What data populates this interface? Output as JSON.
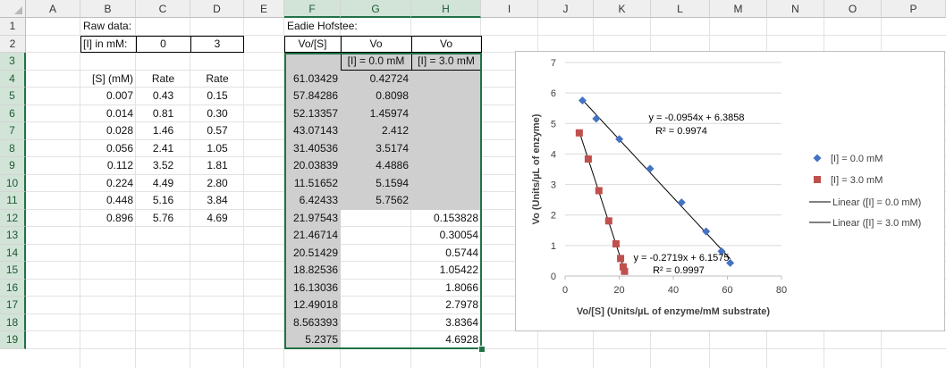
{
  "columns": [
    "A",
    "B",
    "C",
    "D",
    "E",
    "F",
    "G",
    "H",
    "I",
    "J",
    "K",
    "L",
    "M",
    "N",
    "O",
    "P"
  ],
  "rows": [
    "1",
    "2",
    "3",
    "4",
    "5",
    "6",
    "7",
    "8",
    "9",
    "10",
    "11",
    "12",
    "13",
    "14",
    "15",
    "16",
    "17",
    "18",
    "19"
  ],
  "raw": {
    "title": "Raw data:",
    "i_label": "[I] in mM:",
    "i_values": [
      "0",
      "3"
    ],
    "headers": [
      "[S] (mM)",
      "Rate",
      "Rate"
    ],
    "s": [
      "0.007",
      "0.014",
      "0.028",
      "0.056",
      "0.112",
      "0.224",
      "0.448",
      "0.896"
    ],
    "rate0": [
      "0.43",
      "0.81",
      "1.46",
      "2.41",
      "3.52",
      "4.49",
      "5.16",
      "5.76"
    ],
    "rate3": [
      "0.15",
      "0.30",
      "0.57",
      "1.05",
      "1.81",
      "2.80",
      "3.84",
      "4.69"
    ]
  },
  "eh": {
    "title": "Eadie Hofstee:",
    "headers": [
      "Vo/[S]",
      "Vo",
      "Vo"
    ],
    "subheaders": [
      "[I] = 0.0 mM",
      "[I] = 3.0 mM"
    ],
    "vos": [
      "61.03429",
      "57.84286",
      "52.13357",
      "43.07143",
      "31.40536",
      "20.03839",
      "11.51652",
      "6.42433",
      "21.97543",
      "21.46714",
      "20.51429",
      "18.82536",
      "16.13036",
      "12.49018",
      "8.563393",
      "5.2375"
    ],
    "vo0": [
      "0.42724",
      "0.8098",
      "1.45974",
      "2.412",
      "3.5174",
      "4.4886",
      "5.1594",
      "5.7562"
    ],
    "vo3": [
      "0.153828",
      "0.30054",
      "0.5744",
      "1.05422",
      "1.8066",
      "2.7978",
      "3.8364",
      "4.6928"
    ]
  },
  "chart_data": {
    "type": "scatter",
    "xlabel": "Vo/[S] (Units/µL of enzyme/mM substrate)",
    "ylabel": "Vo (Units/µL of enzyme)",
    "xlim": [
      0,
      80
    ],
    "ylim": [
      0,
      7
    ],
    "xticks": [
      "0",
      "20",
      "40",
      "60",
      "80"
    ],
    "yticks": [
      "0",
      "1",
      "2",
      "3",
      "4",
      "5",
      "6",
      "7"
    ],
    "legend_position": "right",
    "series": [
      {
        "name": "[I] = 0.0 mM",
        "marker": "diamond",
        "color": "#4472c4",
        "x": [
          61.03429,
          57.84286,
          52.13357,
          43.07143,
          31.40536,
          20.03839,
          11.51652,
          6.42433
        ],
        "y": [
          0.42724,
          0.8098,
          1.45974,
          2.412,
          3.5174,
          4.4886,
          5.1594,
          5.7562
        ]
      },
      {
        "name": "[I] = 3.0 mM",
        "marker": "square",
        "color": "#c0504d",
        "x": [
          21.97543,
          21.46714,
          20.51429,
          18.82536,
          16.13036,
          12.49018,
          8.563393,
          5.2375
        ],
        "y": [
          0.153828,
          0.30054,
          0.5744,
          1.05422,
          1.8066,
          2.7978,
          3.8364,
          4.6928
        ]
      }
    ],
    "trendlines": [
      {
        "name": "Linear ([I] = 0.0 mM)",
        "slope": -0.0954,
        "intercept": 6.3858,
        "equation": "y = -0.0954x + 6.3858",
        "r2": "R² = 0.9974",
        "x_range": [
          6.42433,
          61.03429
        ]
      },
      {
        "name": "Linear ([I] = 3.0 mM)",
        "slope": -0.2719,
        "intercept": 6.1575,
        "equation": "y = -0.2719x + 6.1575",
        "r2": "R² = 0.9997",
        "x_range": [
          5.2375,
          21.97543
        ]
      }
    ]
  }
}
